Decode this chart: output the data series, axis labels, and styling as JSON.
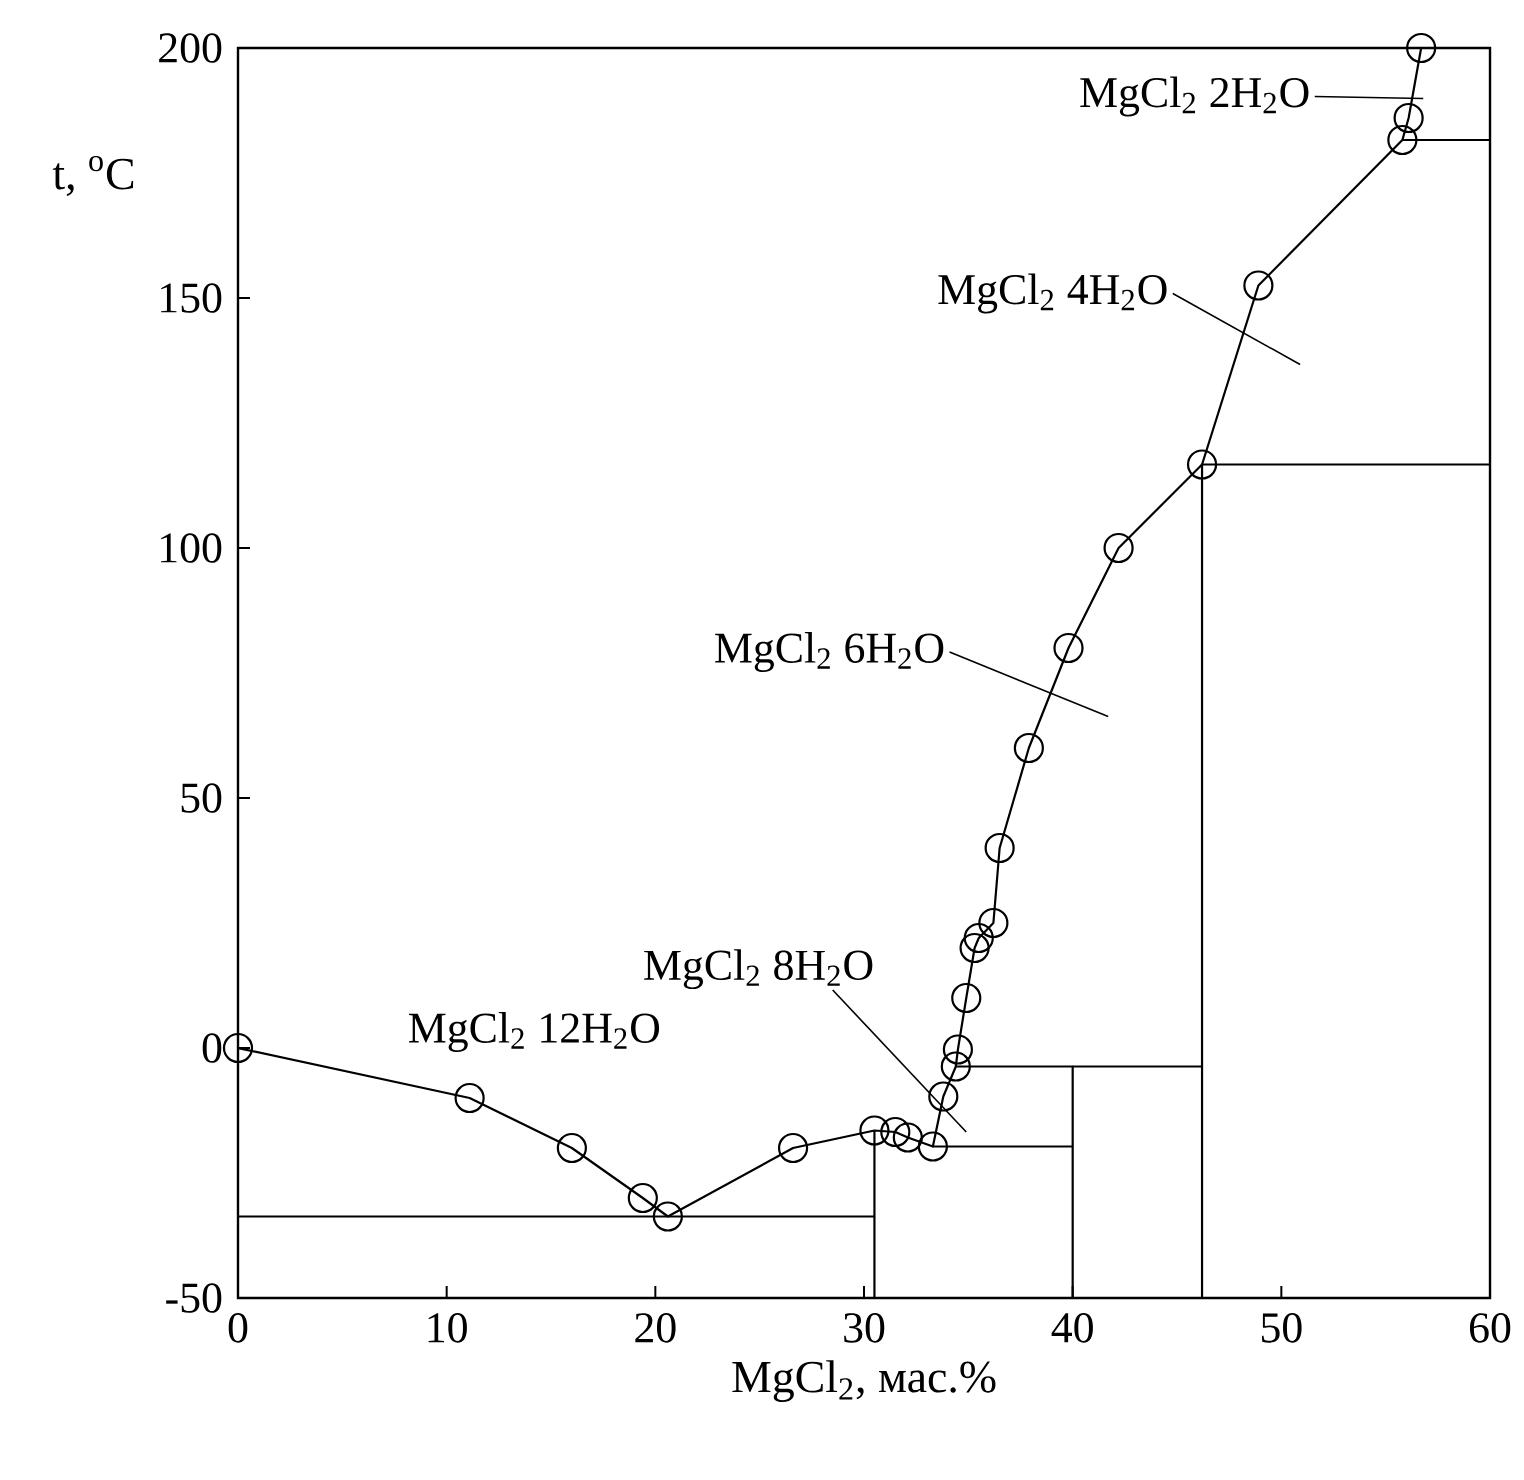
{
  "chart_data": {
    "type": "line",
    "xlabel": "MgCl$_{2}$, мас.%",
    "ylabel": "t, $^{o}$C",
    "xlim": [
      0,
      60
    ],
    "ylim": [
      -50,
      200
    ],
    "xticks": [
      0,
      10,
      20,
      30,
      40,
      50,
      60
    ],
    "yticks": [
      -50,
      0,
      50,
      100,
      150,
      200
    ],
    "grid": false,
    "marker": "circle",
    "line_style": "solid",
    "series": [
      {
        "color": "#000000",
        "x": [
          0,
          11.1,
          16.0,
          19.4,
          20.6,
          26.6,
          30.5,
          31.5,
          32.1,
          33.3,
          33.8,
          34.4,
          34.5,
          34.9,
          35.3,
          35.5,
          36.2,
          36.5,
          37.9,
          39.8,
          42.2,
          46.2,
          48.9,
          55.8,
          56.1,
          56.7
        ],
        "values": [
          0,
          -10,
          -20,
          -30,
          -33.7,
          -20,
          -16.5,
          -16.8,
          -17.9,
          -19.7,
          -9.7,
          -3.7,
          -0.3,
          10,
          20,
          22,
          25,
          40,
          60,
          80,
          100,
          116.7,
          152.5,
          181.6,
          186,
          200
        ]
      },
      {
        "marker": "none",
        "color": "#000000",
        "x": [
          0,
          30.5
        ],
        "values": [
          -33.7,
          -33.7
        ]
      },
      {
        "marker": "none",
        "color": "#000000",
        "x": [
          30.5,
          30.5
        ],
        "values": [
          -50,
          -16.5
        ]
      },
      {
        "marker": "none",
        "color": "#000000",
        "x": [
          33.3,
          40,
          40
        ],
        "values": [
          -19.7,
          -19.7,
          -50
        ]
      },
      {
        "marker": "none",
        "color": "#000000",
        "x": [
          34.4,
          40,
          40
        ],
        "values": [
          -3.7,
          -3.7,
          -19.7
        ]
      },
      {
        "marker": "none",
        "color": "#000000",
        "x": [
          40,
          46.2,
          46.2,
          60
        ],
        "values": [
          -3.7,
          -3.7,
          116.7,
          116.7
        ]
      },
      {
        "marker": "none",
        "color": "#000000",
        "x": [
          46.2,
          46.2
        ],
        "values": [
          -50,
          -3.7
        ]
      },
      {
        "marker": "none",
        "color": "#000000",
        "x": [
          55.8,
          60
        ],
        "values": [
          181.6,
          181.6
        ]
      }
    ],
    "annotations": [
      "MgCl$_{2}$ 2H$_{2}$O",
      "MgCl$_{2}$ 4H$_{2}$O",
      "MgCl$_{2}$ 6H$_{2}$O",
      "MgCl$_{2}$ 8H$_{2}$O",
      "MgCl$_{2}$ 12H$_{2}$O"
    ]
  }
}
